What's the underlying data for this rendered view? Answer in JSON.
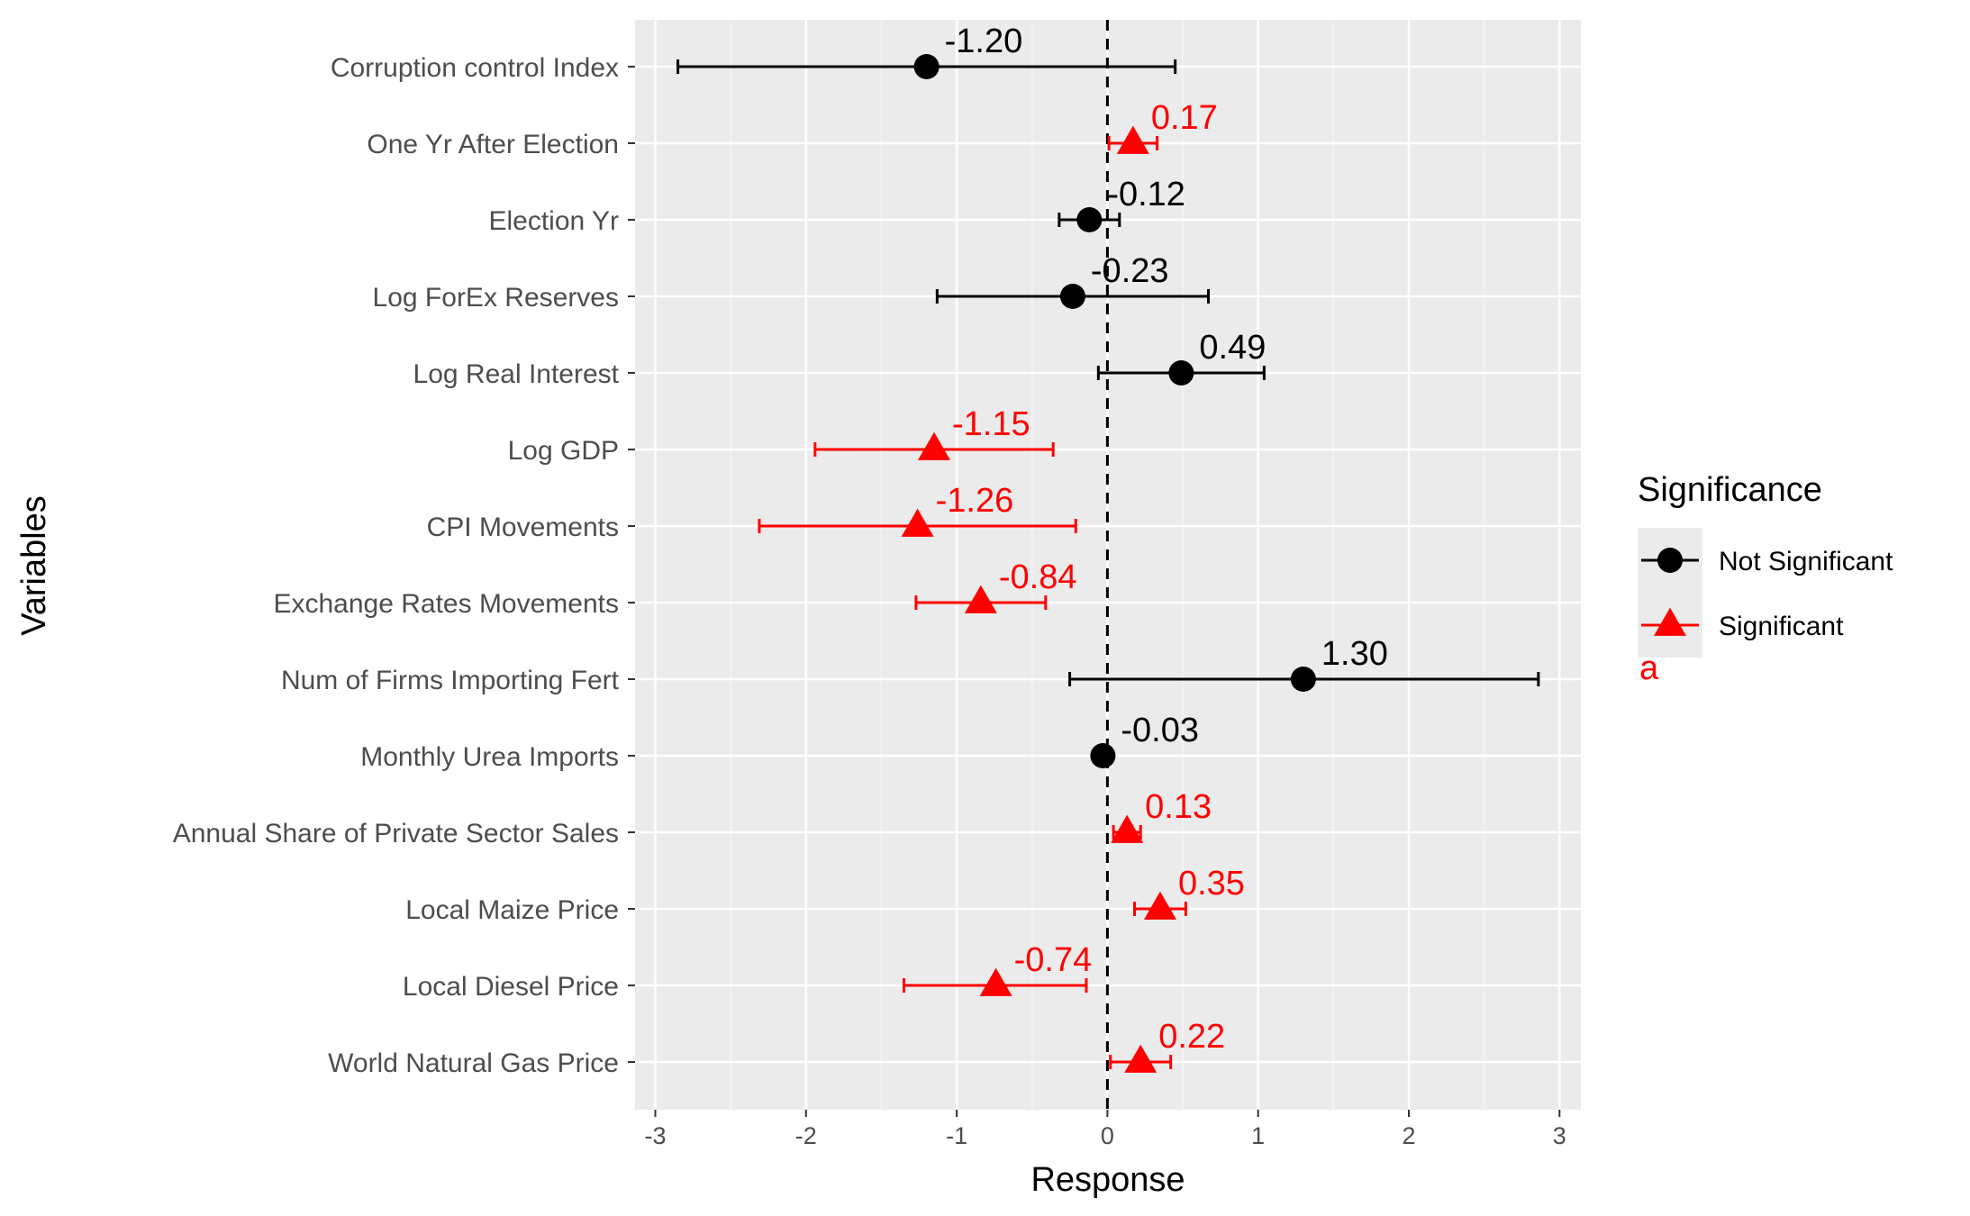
{
  "chart_data": {
    "type": "scatter",
    "xlabel": "Response",
    "ylabel": "Variables",
    "xlim": [
      -3.1,
      3.15
    ],
    "x_ticks": [
      -3,
      -2,
      -1,
      0,
      1,
      2,
      3
    ],
    "x_tick_labels": [
      "-3",
      "-2",
      "-1",
      "0",
      "1",
      "2",
      "3"
    ],
    "reference_line_x": 0,
    "grid": true,
    "legend": {
      "title": "Significance",
      "placement": "right",
      "entries": [
        {
          "name": "Not Significant",
          "color": "#000000",
          "shape": "circle"
        },
        {
          "name": "Significant",
          "color": "#ff0000",
          "shape": "triangle"
        }
      ],
      "key_text": "a"
    },
    "categories": [
      "Corruption control Index",
      "One Yr After Election",
      "Election Yr",
      "Log ForEx Reserves",
      "Log Real Interest",
      "Log GDP",
      "CPI Movements",
      "Exchange Rates Movements",
      "Num of Firms Importing Fert",
      "Monthly Urea Imports",
      "Annual Share of Private Sector Sales",
      "Local Maize Price",
      "Local Diesel Price",
      "World Natural Gas Price"
    ],
    "points": [
      {
        "variable": "Corruption control Index",
        "estimate": -1.2,
        "lower": -2.85,
        "upper": 0.45,
        "significance": "Not Significant",
        "label": "-1.20"
      },
      {
        "variable": "One Yr After Election",
        "estimate": 0.17,
        "lower": 0.01,
        "upper": 0.33,
        "significance": "Significant",
        "label": "0.17"
      },
      {
        "variable": "Election Yr",
        "estimate": -0.12,
        "lower": -0.32,
        "upper": 0.08,
        "significance": "Not Significant",
        "label": "-0.12"
      },
      {
        "variable": "Log ForEx Reserves",
        "estimate": -0.23,
        "lower": -1.13,
        "upper": 0.67,
        "significance": "Not Significant",
        "label": "-0.23"
      },
      {
        "variable": "Log Real Interest",
        "estimate": 0.49,
        "lower": -0.06,
        "upper": 1.04,
        "significance": "Not Significant",
        "label": "0.49"
      },
      {
        "variable": "Log GDP",
        "estimate": -1.15,
        "lower": -1.94,
        "upper": -0.36,
        "significance": "Significant",
        "label": "-1.15"
      },
      {
        "variable": "CPI Movements",
        "estimate": -1.26,
        "lower": -2.31,
        "upper": -0.21,
        "significance": "Significant",
        "label": "-1.26"
      },
      {
        "variable": "Exchange Rates Movements",
        "estimate": -0.84,
        "lower": -1.27,
        "upper": -0.41,
        "significance": "Significant",
        "label": "-0.84"
      },
      {
        "variable": "Num of Firms Importing Fert",
        "estimate": 1.3,
        "lower": -0.25,
        "upper": 2.86,
        "significance": "Not Significant",
        "label": "1.30"
      },
      {
        "variable": "Monthly Urea Imports",
        "estimate": -0.03,
        "lower": -0.05,
        "upper": -0.01,
        "significance": "Not Significant",
        "label": "-0.03"
      },
      {
        "variable": "Annual Share of Private Sector Sales",
        "estimate": 0.13,
        "lower": 0.04,
        "upper": 0.22,
        "significance": "Significant",
        "label": "0.13"
      },
      {
        "variable": "Local Maize Price",
        "estimate": 0.35,
        "lower": 0.18,
        "upper": 0.52,
        "significance": "Significant",
        "label": "0.35"
      },
      {
        "variable": "Local Diesel Price",
        "estimate": -0.74,
        "lower": -1.35,
        "upper": -0.14,
        "significance": "Significant",
        "label": "-0.74"
      },
      {
        "variable": "World Natural Gas Price",
        "estimate": 0.22,
        "lower": 0.02,
        "upper": 0.42,
        "significance": "Significant",
        "label": "0.22"
      }
    ],
    "colors": {
      "Not Significant": "#000000",
      "Significant": "#ff0000",
      "panel_background": "#ebebeb",
      "grid_major": "#ffffff",
      "grid_minor": "#f4f4f4"
    }
  }
}
